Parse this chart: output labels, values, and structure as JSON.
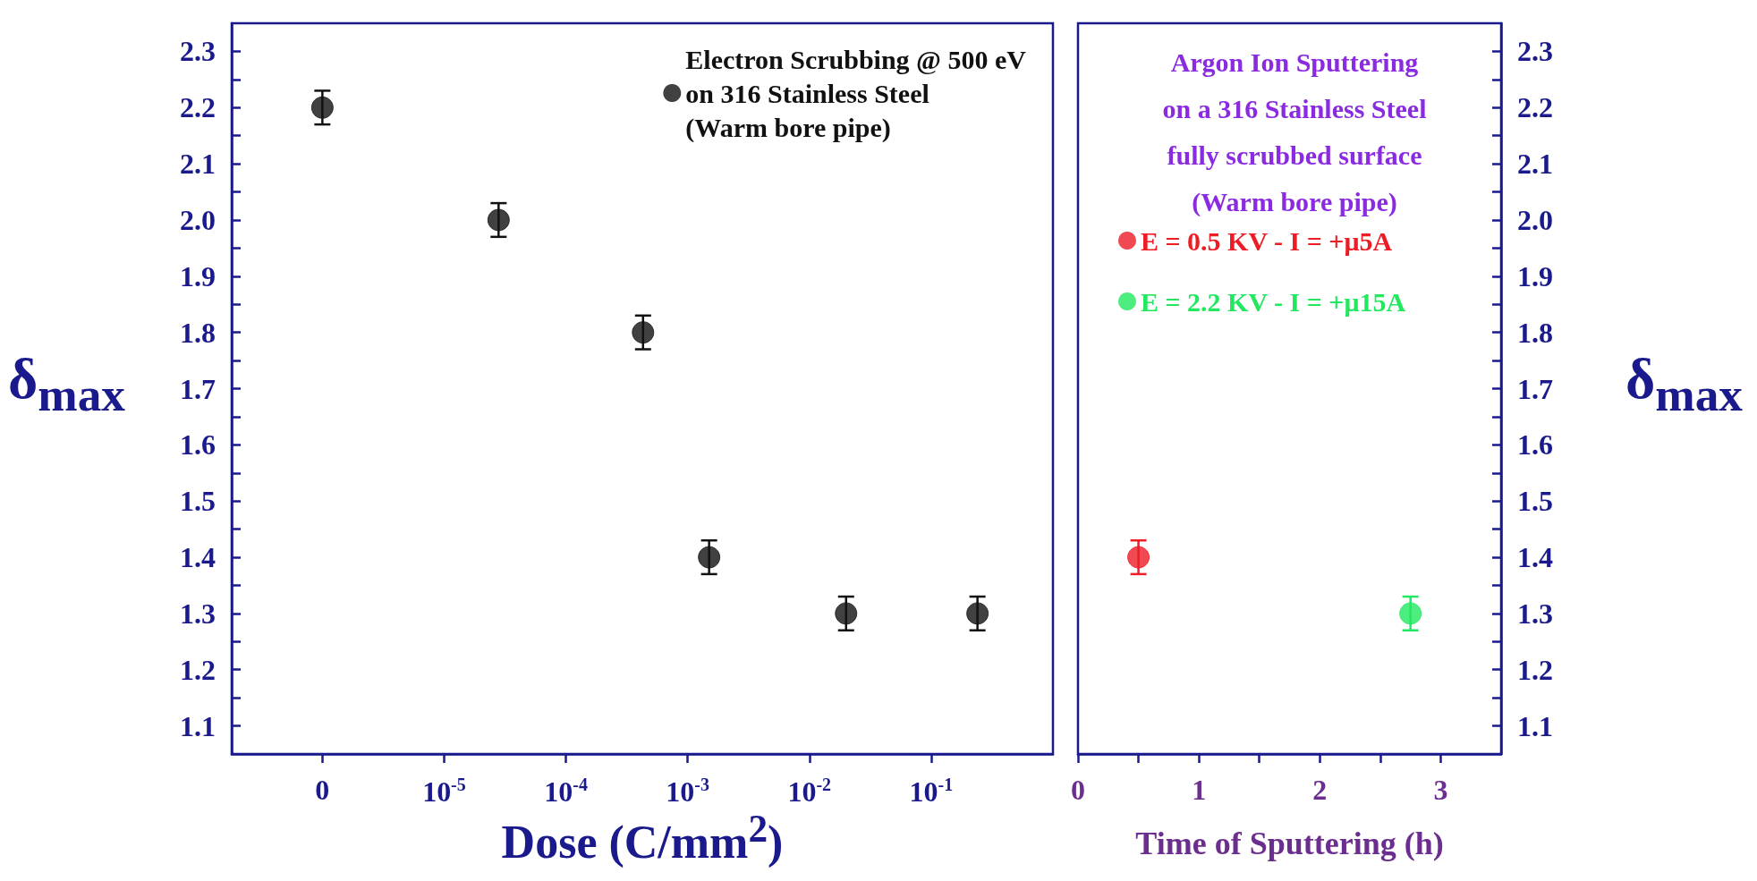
{
  "chart_data": [
    {
      "type": "scatter",
      "xlabel": "Dose (C/mm$^{2}$)",
      "ylabel": "δ$_{max}$",
      "log": "x",
      "marker": "circle",
      "legend": "top right",
      "xlim": [
        1.8e-07,
        1
      ],
      "xticks": [
        {
          "value": 1e-06,
          "label": "0"
        },
        {
          "value": 1e-05,
          "label": "10$^{-5}$"
        },
        {
          "value": 0.0001,
          "label": "10$^{-4}$"
        },
        {
          "value": 0.001,
          "label": "10$^{-3}$"
        },
        {
          "value": 0.01,
          "label": "10$^{-2}$"
        },
        {
          "value": 0.1,
          "label": "10$^{-1}$"
        }
      ],
      "ylim": [
        1.05,
        2.35
      ],
      "yticks": [
        1.1,
        {
          "value": 1.15,
          "label": null
        },
        1.2,
        {
          "value": 1.25,
          "label": null
        },
        1.3,
        {
          "value": 1.35,
          "label": null
        },
        1.4,
        {
          "value": 1.45,
          "label": null
        },
        1.5,
        {
          "value": 1.55,
          "label": null
        },
        1.6,
        {
          "value": 1.65,
          "label": null
        },
        1.7,
        {
          "value": 1.75,
          "label": null
        },
        1.8,
        {
          "value": 1.85,
          "label": null
        },
        1.9,
        {
          "value": 1.95,
          "label": null
        },
        {
          "value": 2.0,
          "label": "2.0"
        },
        {
          "value": 2.05,
          "label": null
        },
        2.1,
        {
          "value": 2.15,
          "label": null
        },
        2.2,
        {
          "value": 2.25,
          "label": null
        },
        2.3
      ],
      "x": [
        1e-06,
        2.8e-05,
        0.00043,
        0.0015,
        0.02,
        0.24
      ],
      "series": [
        {
          "name": "Electron Scrubbing @ 500 eV\non 316 Stainless Steel\n(Warm bore pipe)",
          "color": "#111111",
          "values": [
            2.2,
            2.0,
            1.8,
            1.4,
            1.3,
            1.3
          ],
          "errors": [
            0.03,
            0.03,
            0.03,
            0.03,
            0.03,
            0.03
          ]
        }
      ]
    },
    {
      "type": "scatter",
      "xlabel": "Time of Sputtering (h)",
      "y2label": "δ$_{max}$",
      "marker": "circle",
      "legend": "top",
      "legend_title": "Argon Ion Sputtering\non a 316 Stainless Steel\nfully scrubbed surface\n(Warm bore pipe)",
      "xlim": [
        0,
        3.5
      ],
      "xticks": [
        0,
        {
          "value": 0.5,
          "label": null
        },
        1,
        {
          "value": 1.5,
          "label": null
        },
        2,
        {
          "value": 2.5,
          "label": null
        },
        3
      ],
      "y2lim": [
        1.05,
        2.35
      ],
      "y2ticks": [
        1.1,
        {
          "value": 1.15,
          "label": null
        },
        1.2,
        {
          "value": 1.25,
          "label": null
        },
        1.3,
        {
          "value": 1.35,
          "label": null
        },
        1.4,
        {
          "value": 1.45,
          "label": null
        },
        1.5,
        {
          "value": 1.55,
          "label": null
        },
        1.6,
        {
          "value": 1.65,
          "label": null
        },
        1.7,
        {
          "value": 1.75,
          "label": null
        },
        1.8,
        {
          "value": 1.85,
          "label": null
        },
        1.9,
        {
          "value": 1.95,
          "label": null
        },
        {
          "value": 2.0,
          "label": "2.0"
        },
        {
          "value": 2.05,
          "label": null
        },
        2.1,
        {
          "value": 2.15,
          "label": null
        },
        2.2,
        {
          "value": 2.25,
          "label": null
        },
        2.3
      ],
      "series": [
        {
          "name": "E = 0.5 KV - I = +μ5A",
          "color": "#ee1c25",
          "axis": "y2",
          "x": [
            0.5
          ],
          "values": [
            1.4
          ],
          "errors": [
            0.03
          ]
        },
        {
          "name": "E = 2.2 KV - I = +μ15A",
          "color": "#22e860",
          "axis": "y2",
          "x": [
            2.75
          ],
          "values": [
            1.3
          ],
          "errors": [
            0.03
          ]
        }
      ]
    }
  ]
}
